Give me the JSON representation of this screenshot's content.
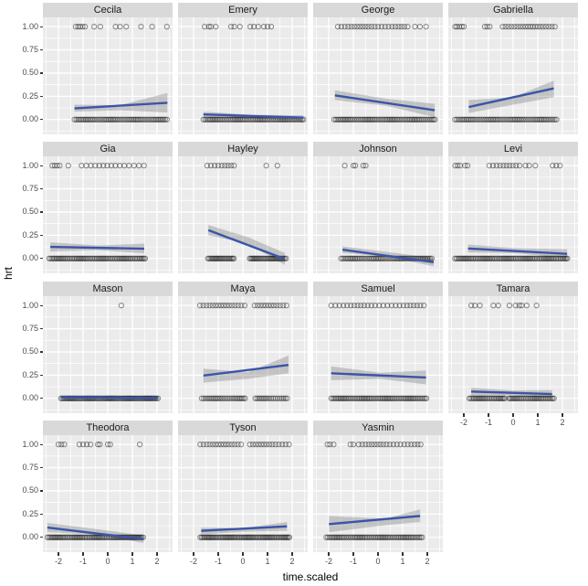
{
  "chart_data": {
    "type": "scatter",
    "title": "",
    "xlabel": "time.scaled",
    "ylabel": "hrt",
    "legend_position": "none",
    "grid": "on",
    "x_ticks": [
      {
        "label": "-2",
        "value": -2
      },
      {
        "label": "-1",
        "value": -1
      },
      {
        "label": "0",
        "value": 0
      },
      {
        "label": "1",
        "value": 1
      },
      {
        "label": "2",
        "value": 2
      }
    ],
    "y_ticks": [
      {
        "label": "1.00",
        "value": 1.0
      },
      {
        "label": "0.75",
        "value": 0.75
      },
      {
        "label": "0.50",
        "value": 0.5
      },
      {
        "label": "0.25",
        "value": 0.25
      },
      {
        "label": "0.00",
        "value": 0.0
      }
    ],
    "xlim": [
      -2.63,
      2.63
    ],
    "ylim": [
      -0.16,
      1.1
    ],
    "x_minor": [
      -2.5,
      -1.5,
      -0.5,
      0.5,
      1.5,
      2.5
    ],
    "y_minor": [
      -0.125,
      0.125,
      0.375,
      0.625,
      0.875
    ],
    "facets": [
      {
        "name": "Cecila",
        "row": 0,
        "col": 0,
        "line": {
          "x1": -1.35,
          "y1": 0.12,
          "x2": 2.42,
          "y2": 0.18
        },
        "band": {
          "x": [
            -1.35,
            0.5,
            2.42
          ],
          "hi": [
            0.16,
            0.155,
            0.285
          ],
          "lo": [
            0.085,
            0.1,
            0.075
          ]
        },
        "pts1": [
          -1.3,
          -1.2,
          -1.12,
          -1.02,
          -0.92,
          -0.55,
          -0.3,
          0.32,
          0.5,
          0.75,
          1.35,
          1.8,
          2.4
        ],
        "pts0": [
          {
            "from": -1.35,
            "to": 2.42,
            "n": 58
          }
        ]
      },
      {
        "name": "Emery",
        "row": 0,
        "col": 1,
        "line": {
          "x1": -1.6,
          "y1": 0.055,
          "x2": 2.45,
          "y2": 0.02
        },
        "band": {
          "x": [
            -1.6,
            0.4,
            2.45
          ],
          "hi": [
            0.085,
            0.05,
            0.045
          ],
          "lo": [
            0.025,
            0.01,
            -0.01
          ]
        },
        "pts1": [
          -1.55,
          -1.38,
          -1.3,
          -1.1,
          -0.48,
          -0.35,
          -0.12,
          0.3,
          0.45,
          0.62,
          0.85,
          1.0,
          1.15
        ],
        "pts0": [
          {
            "from": -1.6,
            "to": 2.45,
            "n": 66
          }
        ]
      },
      {
        "name": "George",
        "row": 0,
        "col": 2,
        "line": {
          "x1": -1.75,
          "y1": 0.26,
          "x2": 2.3,
          "y2": 0.1
        },
        "band": {
          "x": [
            -1.75,
            0.3,
            2.3
          ],
          "hi": [
            0.315,
            0.225,
            0.17
          ],
          "lo": [
            0.21,
            0.15,
            0.025
          ]
        },
        "pts1": [
          {
            "from": -1.63,
            "to": 1.05,
            "n": 22
          },
          1.2,
          1.5,
          1.7,
          1.95
        ],
        "pts0": [
          {
            "from": -1.78,
            "to": 2.3,
            "n": 66
          }
        ]
      },
      {
        "name": "Gabriella",
        "row": 0,
        "col": 3,
        "line": {
          "x1": -1.8,
          "y1": 0.135,
          "x2": 1.65,
          "y2": 0.335
        },
        "band": {
          "x": [
            -1.8,
            0.0,
            1.65
          ],
          "hi": [
            0.21,
            0.24,
            0.42
          ],
          "lo": [
            0.07,
            0.16,
            0.24
          ]
        },
        "pts1": [
          -2.35,
          -2.28,
          -2.18,
          -2.08,
          -2.0,
          -1.15,
          -1.05,
          -0.95,
          {
            "from": -0.4,
            "to": 1.68,
            "n": 20
          }
        ],
        "pts0": [
          {
            "from": -2.36,
            "to": 1.75,
            "n": 62
          }
        ]
      },
      {
        "name": "Gia",
        "row": 1,
        "col": 0,
        "line": {
          "x1": -2.33,
          "y1": 0.125,
          "x2": 1.48,
          "y2": 0.105
        },
        "band": {
          "x": [
            -2.33,
            -0.4,
            1.48
          ],
          "hi": [
            0.175,
            0.14,
            0.16
          ],
          "lo": [
            0.075,
            0.09,
            0.055
          ]
        },
        "pts1": [
          -2.25,
          -2.15,
          -2.05,
          -1.95,
          -1.6,
          {
            "from": -1.1,
            "to": 1.45,
            "n": 15
          }
        ],
        "pts0": [
          {
            "from": -2.38,
            "to": 1.52,
            "n": 68
          }
        ]
      },
      {
        "name": "Hayley",
        "row": 1,
        "col": 1,
        "line": {
          "x1": -1.4,
          "y1": 0.305,
          "x2": 1.7,
          "y2": -0.005
        },
        "band": {
          "x": [
            -1.4,
            0.2,
            1.7
          ],
          "hi": [
            0.36,
            0.23,
            0.06
          ],
          "lo": [
            0.25,
            0.16,
            -0.07
          ]
        },
        "pts1": [
          {
            "from": -1.45,
            "to": -0.35,
            "n": 9
          },
          0.95,
          1.4
        ],
        "pts0": [
          {
            "from": -1.42,
            "to": -0.37,
            "n": 22
          },
          {
            "from": 0.26,
            "to": 1.74,
            "n": 30
          }
        ]
      },
      {
        "name": "Johnson",
        "row": 1,
        "col": 2,
        "line": {
          "x1": -1.44,
          "y1": 0.095,
          "x2": 2.26,
          "y2": -0.04
        },
        "band": {
          "x": [
            -1.44,
            0.4,
            2.26
          ],
          "hi": [
            0.13,
            0.07,
            0.005
          ],
          "lo": [
            0.06,
            0.02,
            -0.085
          ]
        },
        "pts1": [
          -1.35,
          -1.0,
          -0.92,
          -0.6,
          -0.5
        ],
        "pts0": [
          {
            "from": -1.5,
            "to": 2.2,
            "n": 58
          }
        ]
      },
      {
        "name": "Levi",
        "row": 1,
        "col": 3,
        "line": {
          "x1": -1.83,
          "y1": 0.108,
          "x2": 2.19,
          "y2": 0.05
        },
        "band": {
          "x": [
            -1.83,
            0.2,
            2.19
          ],
          "hi": [
            0.15,
            0.11,
            0.1
          ],
          "lo": [
            0.065,
            0.055,
            0.0
          ]
        },
        "pts1": [
          -2.35,
          -2.25,
          -2.15,
          -1.95,
          -1.85,
          {
            "from": -1.0,
            "to": 0.3,
            "n": 10
          },
          0.5,
          0.65,
          0.9,
          1.6,
          1.75,
          1.9
        ],
        "pts0": [
          {
            "from": -2.36,
            "to": 2.2,
            "n": 82
          }
        ]
      },
      {
        "name": "Mason",
        "row": 2,
        "col": 0,
        "line": {
          "x1": -1.9,
          "y1": 0.012,
          "x2": 2.04,
          "y2": 0.004
        },
        "band": {
          "x": [
            -1.9,
            2.04
          ],
          "hi": [
            0.025,
            0.02
          ],
          "lo": [
            -0.002,
            -0.012
          ]
        },
        "pts1": [
          0.55
        ],
        "pts0": [
          {
            "from": -1.9,
            "to": 2.04,
            "n": 75
          }
        ]
      },
      {
        "name": "Maya",
        "row": 2,
        "col": 1,
        "line": {
          "x1": -1.6,
          "y1": 0.245,
          "x2": 1.85,
          "y2": 0.36
        },
        "band": {
          "x": [
            -1.6,
            0.2,
            1.85
          ],
          "hi": [
            0.32,
            0.28,
            0.46
          ],
          "lo": [
            0.17,
            0.21,
            0.27
          ]
        },
        "pts1": [
          {
            "from": -1.74,
            "to": 0.07,
            "n": 16
          },
          {
            "from": 0.44,
            "to": 1.78,
            "n": 12
          }
        ],
        "pts0": [
          {
            "from": -1.67,
            "to": 0.11,
            "n": 26
          },
          {
            "from": 0.48,
            "to": 1.78,
            "n": 18
          }
        ]
      },
      {
        "name": "Samuel",
        "row": 2,
        "col": 2,
        "line": {
          "x1": -1.9,
          "y1": 0.27,
          "x2": 1.95,
          "y2": 0.225
        },
        "band": {
          "x": [
            -1.9,
            0.1,
            1.95
          ],
          "hi": [
            0.345,
            0.275,
            0.3
          ],
          "lo": [
            0.195,
            0.21,
            0.15
          ]
        },
        "pts1": [
          {
            "from": -1.9,
            "to": 1.9,
            "n": 26
          }
        ],
        "pts0": [
          {
            "from": -1.9,
            "to": 1.95,
            "n": 64
          }
        ]
      },
      {
        "name": "Tamara",
        "row": 2,
        "col": 3,
        "line": {
          "x1": -1.7,
          "y1": 0.073,
          "x2": 1.58,
          "y2": 0.046
        },
        "band": {
          "x": [
            -1.7,
            0.0,
            1.58
          ],
          "hi": [
            0.115,
            0.085,
            0.09
          ],
          "lo": [
            0.03,
            0.035,
            0.0
          ]
        },
        "pts1": [
          -1.7,
          -1.55,
          -1.35,
          -0.8,
          -0.6,
          -0.15,
          0.1,
          0.25,
          0.35,
          0.55,
          0.95
        ],
        "pts0": [
          {
            "from": -1.78,
            "to": -0.32,
            "n": 26
          },
          {
            "from": -0.19,
            "to": 1.64,
            "n": 32
          }
        ]
      },
      {
        "name": "Theodora",
        "row": 3,
        "col": 0,
        "line": {
          "x1": -2.45,
          "y1": 0.105,
          "x2": 1.45,
          "y2": -0.02
        },
        "band": {
          "x": [
            -2.45,
            -0.5,
            1.45
          ],
          "hi": [
            0.155,
            0.09,
            0.02
          ],
          "lo": [
            0.055,
            0.03,
            -0.06
          ]
        },
        "pts1": [
          -2.0,
          -1.88,
          -1.76,
          -1.15,
          -1.0,
          -0.85,
          -0.7,
          -0.4,
          -0.32,
          0.0,
          0.1,
          1.3
        ],
        "pts0": [
          {
            "from": -2.45,
            "to": 1.45,
            "n": 72
          }
        ]
      },
      {
        "name": "Tyson",
        "row": 3,
        "col": 1,
        "line": {
          "x1": -1.69,
          "y1": 0.07,
          "x2": 1.79,
          "y2": 0.118
        },
        "band": {
          "x": [
            -1.69,
            0.0,
            1.79
          ],
          "hi": [
            0.105,
            0.1,
            0.165
          ],
          "lo": [
            0.03,
            0.06,
            0.07
          ]
        },
        "pts1": [
          {
            "from": -1.73,
            "to": -0.06,
            "n": 15
          },
          {
            "from": 0.25,
            "to": 1.85,
            "n": 14
          }
        ],
        "pts0": [
          {
            "from": -1.73,
            "to": 1.9,
            "n": 70
          }
        ]
      },
      {
        "name": "Yasmin",
        "row": 3,
        "col": 2,
        "line": {
          "x1": -1.99,
          "y1": 0.142,
          "x2": 1.71,
          "y2": 0.23
        },
        "band": {
          "x": [
            -1.99,
            0.3,
            1.71
          ],
          "hi": [
            0.23,
            0.2,
            0.3
          ],
          "lo": [
            0.055,
            0.13,
            0.165
          ]
        },
        "pts1": [
          -2.05,
          -1.95,
          -1.8,
          -1.12,
          -1.0,
          {
            "from": -0.81,
            "to": 1.71,
            "n": 20
          }
        ],
        "pts0": [
          {
            "from": -2.1,
            "to": 1.78,
            "n": 64
          }
        ]
      }
    ],
    "colors": {
      "panel_bg": "#EBEBEB",
      "grid": "#FFFFFF",
      "strip_bg": "#D9D9D9",
      "strip_text": "#1A1A1A",
      "axis_text": "#4D4D4D",
      "smooth_line": "#3A55A8",
      "band_fill": "rgba(108,108,108,0.32)",
      "point_stroke": "rgba(15,15,15,0.45)"
    }
  }
}
